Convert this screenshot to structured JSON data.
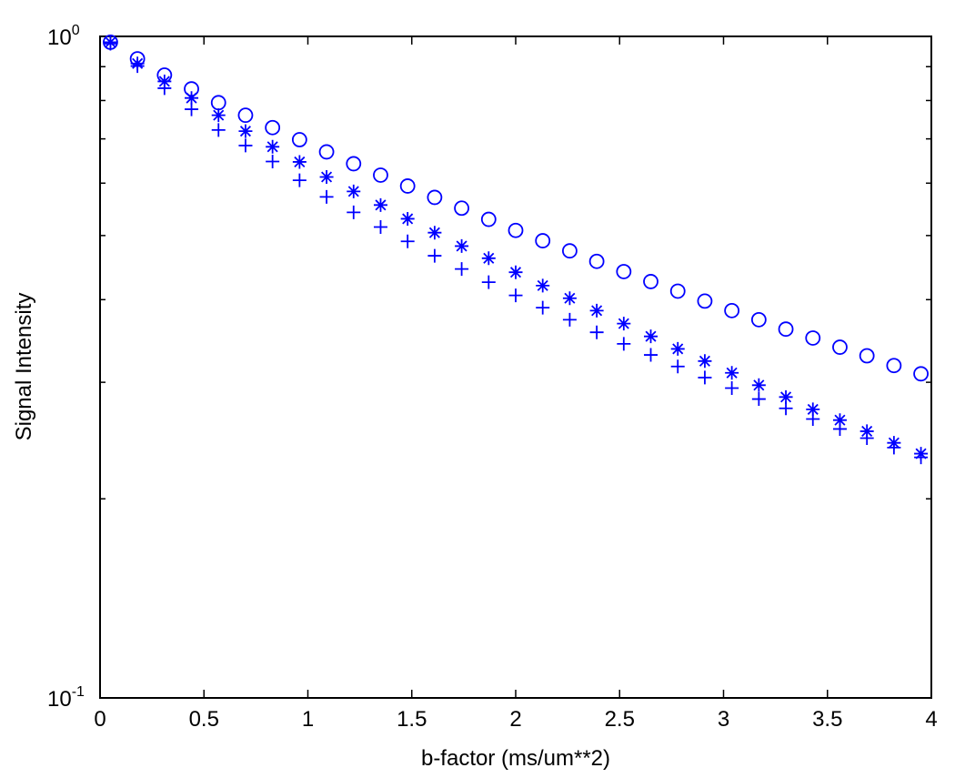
{
  "chart_data": {
    "type": "scatter",
    "title": "",
    "xlabel": "b-factor (ms/um**2)",
    "ylabel": "Signal Intensity",
    "xlim": [
      0,
      4
    ],
    "ylim": [
      0.1,
      1
    ],
    "yscale": "log",
    "x_ticks": [
      0,
      0.5,
      1,
      1.5,
      2,
      2.5,
      3,
      3.5,
      4
    ],
    "x_tick_labels": [
      "0",
      "0.5",
      "1",
      "1.5",
      "2",
      "2.5",
      "3",
      "3.5",
      "4"
    ],
    "y_tick_labels": [
      {
        "value": 1,
        "base": "10",
        "exp": "0"
      },
      {
        "value": 0.1,
        "base": "10",
        "exp": "-1"
      }
    ],
    "grid": false,
    "marker_color": "#0000ff",
    "x": [
      0.05,
      0.18,
      0.31,
      0.44,
      0.57,
      0.7,
      0.83,
      0.96,
      1.09,
      1.22,
      1.35,
      1.48,
      1.61,
      1.74,
      1.87,
      2.0,
      2.13,
      2.26,
      2.39,
      2.52,
      2.65,
      2.78,
      2.91,
      3.04,
      3.17,
      3.3,
      3.43,
      3.56,
      3.69,
      3.82,
      3.95
    ],
    "series": [
      {
        "marker": "circle",
        "values": [
          0.98,
          0.925,
          0.874,
          0.833,
          0.794,
          0.76,
          0.728,
          0.698,
          0.669,
          0.642,
          0.617,
          0.594,
          0.571,
          0.55,
          0.529,
          0.509,
          0.491,
          0.474,
          0.457,
          0.441,
          0.426,
          0.412,
          0.398,
          0.385,
          0.373,
          0.361,
          0.35,
          0.339,
          0.329,
          0.318,
          0.309
        ]
      },
      {
        "marker": "asterisk",
        "values": [
          0.98,
          0.91,
          0.855,
          0.807,
          0.76,
          0.719,
          0.681,
          0.646,
          0.613,
          0.583,
          0.556,
          0.53,
          0.505,
          0.482,
          0.462,
          0.44,
          0.42,
          0.402,
          0.385,
          0.368,
          0.352,
          0.337,
          0.323,
          0.31,
          0.297,
          0.285,
          0.273,
          0.263,
          0.253,
          0.243,
          0.234
        ]
      },
      {
        "marker": "plus",
        "values": [
          0.975,
          0.902,
          0.835,
          0.776,
          0.722,
          0.684,
          0.647,
          0.606,
          0.572,
          0.542,
          0.515,
          0.49,
          0.466,
          0.445,
          0.425,
          0.406,
          0.389,
          0.373,
          0.357,
          0.343,
          0.33,
          0.317,
          0.305,
          0.294,
          0.283,
          0.274,
          0.264,
          0.255,
          0.247,
          0.239,
          0.231
        ]
      }
    ]
  }
}
